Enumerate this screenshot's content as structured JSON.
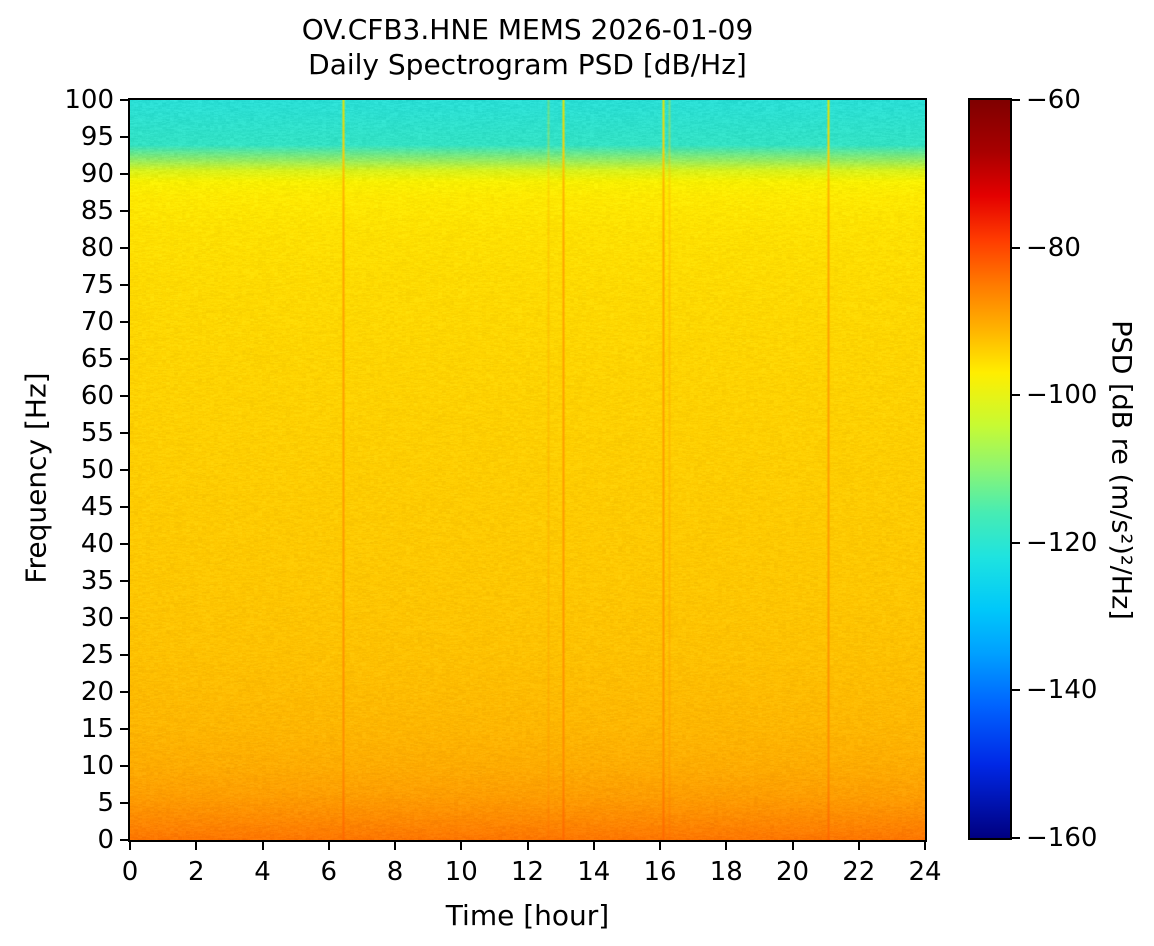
{
  "title": {
    "line1": "OV.CFB3.HNE MEMS 2026-01-09",
    "line2": "Daily Spectrogram PSD [dB/Hz]"
  },
  "axes": {
    "xlabel": "Time [hour]",
    "ylabel": "Frequency [Hz]",
    "x_tick_labels": [
      "0",
      "2",
      "4",
      "6",
      "8",
      "10",
      "12",
      "14",
      "16",
      "18",
      "20",
      "22",
      "24"
    ],
    "y_tick_labels": [
      "0",
      "5",
      "10",
      "15",
      "20",
      "25",
      "30",
      "35",
      "40",
      "45",
      "50",
      "55",
      "60",
      "65",
      "70",
      "75",
      "80",
      "85",
      "90",
      "95",
      "100"
    ]
  },
  "colorbar": {
    "label": "PSD [dB re (m/s²)²/Hz]",
    "tick_labels": [
      "−60",
      "−80",
      "−100",
      "−120",
      "−140",
      "−160"
    ]
  },
  "chart_data": {
    "type": "heatmap",
    "title": "OV.CFB3.HNE MEMS 2026-01-09 Daily Spectrogram PSD [dB/Hz]",
    "xlabel": "Time [hour]",
    "ylabel": "Frequency [Hz]",
    "x_range": [
      0,
      24
    ],
    "x_ticks": [
      0,
      2,
      4,
      6,
      8,
      10,
      12,
      14,
      16,
      18,
      20,
      22,
      24
    ],
    "y_range": [
      0,
      100
    ],
    "y_ticks": [
      0,
      5,
      10,
      15,
      20,
      25,
      30,
      35,
      40,
      45,
      50,
      55,
      60,
      65,
      70,
      75,
      80,
      85,
      90,
      95,
      100
    ],
    "value_range_db": [
      -160,
      -60
    ],
    "colorbar_ticks_db": [
      -60,
      -80,
      -100,
      -120,
      -140,
      -160
    ],
    "colormap": "jet",
    "background_freq_profile": [
      {
        "freq_hz": 100,
        "psd_db": -121,
        "color": "#2adfd6"
      },
      {
        "freq_hz": 94,
        "psd_db": -119,
        "color": "#33e2c4"
      },
      {
        "freq_hz": 92,
        "psd_db": -112,
        "color": "#8feb66"
      },
      {
        "freq_hz": 90.5,
        "psd_db": -104,
        "color": "#d8f21c"
      },
      {
        "freq_hz": 89,
        "psd_db": -99,
        "color": "#f8f000"
      },
      {
        "freq_hz": 87,
        "psd_db": -97.5,
        "color": "#ffe900"
      },
      {
        "freq_hz": 82,
        "psd_db": -96.5,
        "color": "#ffe000"
      },
      {
        "freq_hz": 75,
        "psd_db": -96,
        "color": "#ffda00"
      },
      {
        "freq_hz": 65,
        "psd_db": -95.5,
        "color": "#ffd400"
      },
      {
        "freq_hz": 50,
        "psd_db": -95,
        "color": "#ffcd00"
      },
      {
        "freq_hz": 35,
        "psd_db": -94.5,
        "color": "#ffc700"
      },
      {
        "freq_hz": 25,
        "psd_db": -94,
        "color": "#ffc100"
      },
      {
        "freq_hz": 15,
        "psd_db": -93,
        "color": "#ffb600"
      },
      {
        "freq_hz": 10,
        "psd_db": -92,
        "color": "#ffac00"
      },
      {
        "freq_hz": 6,
        "psd_db": -90.5,
        "color": "#ff9e00"
      },
      {
        "freq_hz": 3,
        "psd_db": -88.5,
        "color": "#ff8c00"
      },
      {
        "freq_hz": 1,
        "psd_db": -86.5,
        "color": "#ff7e00"
      },
      {
        "freq_hz": 0,
        "psd_db": -85.5,
        "color": "#ff7600"
      }
    ],
    "event_lines": [
      {
        "hour": 6.43,
        "strength": 1.0
      },
      {
        "hour": 12.62,
        "strength": 0.35
      },
      {
        "hour": 13.07,
        "strength": 1.0
      },
      {
        "hour": 16.1,
        "strength": 1.0
      },
      {
        "hour": 16.27,
        "strength": 0.4
      },
      {
        "hour": 21.07,
        "strength": 1.0
      }
    ],
    "event_line_freq_colors": [
      {
        "freq_hz": 100,
        "color": "#e6e400"
      },
      {
        "freq_hz": 93,
        "color": "#ffd000"
      },
      {
        "freq_hz": 89,
        "color": "#ffb300"
      },
      {
        "freq_hz": 80,
        "color": "#ffa300"
      },
      {
        "freq_hz": 40,
        "color": "#ff9a00"
      },
      {
        "freq_hz": 10,
        "color": "#ff8c00"
      },
      {
        "freq_hz": 3,
        "color": "#ff7000"
      },
      {
        "freq_hz": 0,
        "color": "#ff6600"
      }
    ],
    "jet_gradient_top_to_bottom": [
      {
        "pos": 0.0,
        "color": "#7f0000"
      },
      {
        "pos": 0.07,
        "color": "#a80000"
      },
      {
        "pos": 0.13,
        "color": "#e40000"
      },
      {
        "pos": 0.19,
        "color": "#ff3c00"
      },
      {
        "pos": 0.25,
        "color": "#ff7a00"
      },
      {
        "pos": 0.31,
        "color": "#ffb200"
      },
      {
        "pos": 0.37,
        "color": "#ffee00"
      },
      {
        "pos": 0.44,
        "color": "#c8fa32"
      },
      {
        "pos": 0.5,
        "color": "#8cf573"
      },
      {
        "pos": 0.56,
        "color": "#46ecb4"
      },
      {
        "pos": 0.62,
        "color": "#1ee3e0"
      },
      {
        "pos": 0.69,
        "color": "#00c8fa"
      },
      {
        "pos": 0.75,
        "color": "#00a0ff"
      },
      {
        "pos": 0.82,
        "color": "#0064ff"
      },
      {
        "pos": 0.9,
        "color": "#0028e6"
      },
      {
        "pos": 1.0,
        "color": "#000080"
      }
    ],
    "noise_db": 1.5
  }
}
